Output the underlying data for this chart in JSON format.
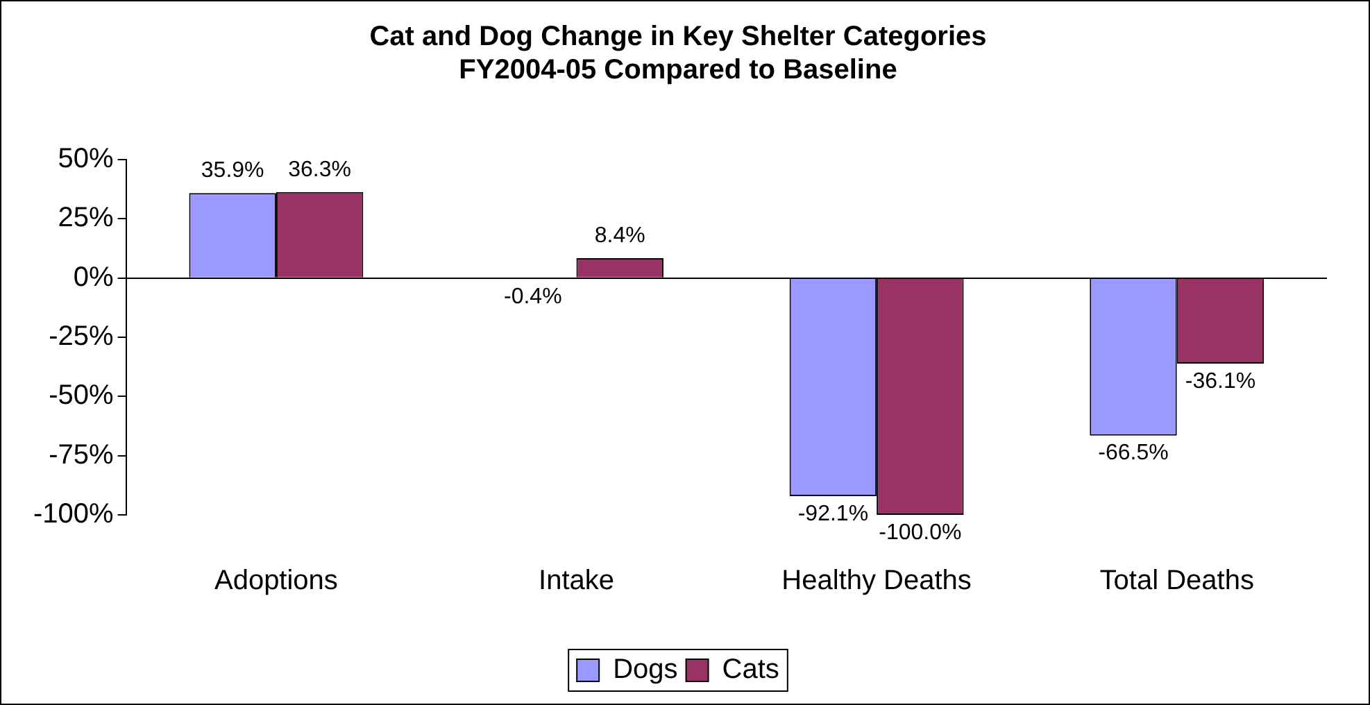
{
  "chart_data": {
    "type": "bar",
    "title": [
      "Cat and Dog Change in Key Shelter Categories",
      "FY2004-05 Compared to Baseline"
    ],
    "categories": [
      "Adoptions",
      "Intake",
      "Healthy Deaths",
      "Total Deaths"
    ],
    "series": [
      {
        "name": "Dogs",
        "color": "#9999ff",
        "values": [
          35.9,
          -0.4,
          -92.1,
          -66.5
        ],
        "value_labels": [
          "35.9%",
          "-0.4%",
          "-92.1%",
          "-66.5%"
        ]
      },
      {
        "name": "Cats",
        "color": "#993366",
        "values": [
          36.3,
          8.4,
          -100.0,
          -36.1
        ],
        "value_labels": [
          "36.3%",
          "8.4%",
          "-100.0%",
          "-36.1%"
        ]
      }
    ],
    "ylim": [
      -100,
      50
    ],
    "yticks": [
      {
        "value": 50,
        "label": "50%"
      },
      {
        "value": 25,
        "label": "25%"
      },
      {
        "value": 0,
        "label": "0%"
      },
      {
        "value": -25,
        "label": "-25%"
      },
      {
        "value": -50,
        "label": "-50%"
      },
      {
        "value": -75,
        "label": "-75%"
      },
      {
        "value": -100,
        "label": "-100%"
      }
    ],
    "legend": "bottom"
  }
}
